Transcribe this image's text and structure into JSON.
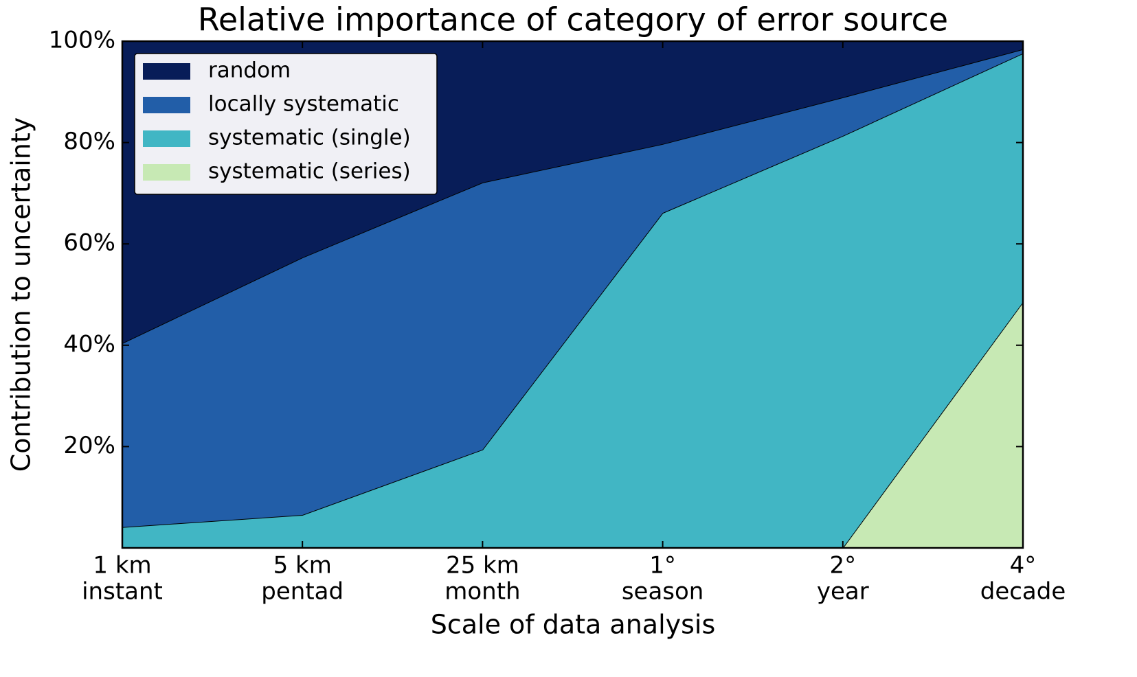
{
  "chart_data": {
    "type": "stacked_area",
    "title": "Relative importance of category of error source",
    "x_label": "Scale of data analysis",
    "y_label": "Contribution to uncertainty",
    "categories": [
      [
        "1 km",
        "instant"
      ],
      [
        "5 km",
        "pentad"
      ],
      [
        "25 km",
        "month"
      ],
      [
        "1°",
        "season"
      ],
      [
        "2°",
        "year"
      ],
      [
        "4°",
        "decade"
      ]
    ],
    "series": [
      {
        "name": "systematic (series)",
        "color": "#c7e9b4",
        "values": [
          0,
          0,
          0,
          0,
          0,
          48.5
        ]
      },
      {
        "name": "systematic (single)",
        "color": "#41b6c4",
        "values": [
          4.1,
          6.5,
          19.4,
          66.1,
          81.3,
          49.1
        ]
      },
      {
        "name": "locally systematic",
        "color": "#225ea8",
        "values": [
          36.3,
          50.8,
          52.7,
          13.6,
          7.6,
          0.8
        ]
      },
      {
        "name": "random",
        "color": "#081d58",
        "values": [
          59.6,
          42.7,
          27.9,
          20.3,
          11.1,
          1.6
        ]
      }
    ],
    "ylim": [
      0,
      100
    ],
    "yticks": [
      {
        "value": 20,
        "label": "20%"
      },
      {
        "value": 40,
        "label": "40%"
      },
      {
        "value": 60,
        "label": "60%"
      },
      {
        "value": 80,
        "label": "80%"
      },
      {
        "value": 100,
        "label": "100%"
      }
    ],
    "legend": "upper left"
  }
}
